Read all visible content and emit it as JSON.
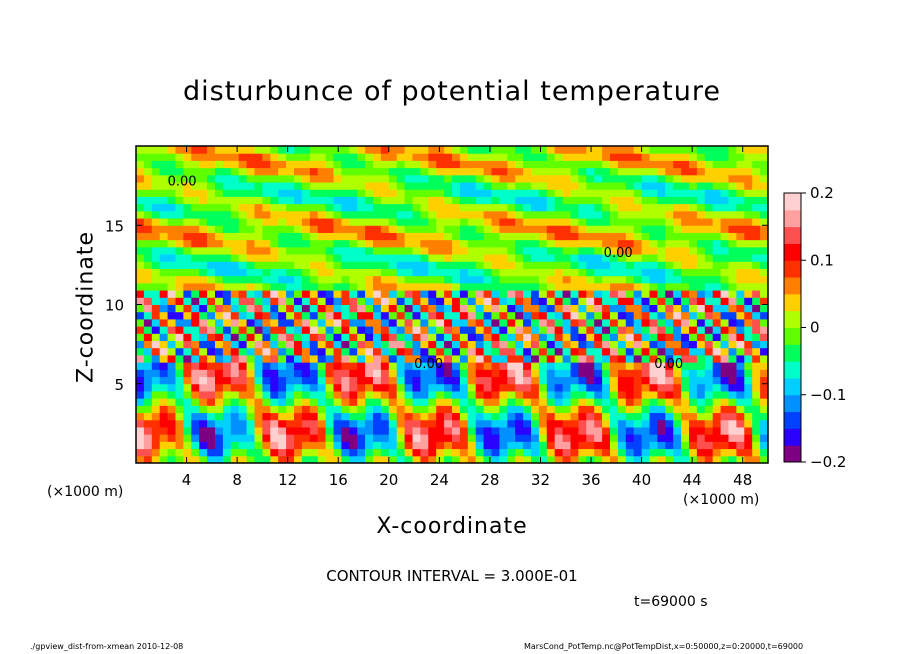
{
  "chart_data": {
    "type": "heatmap",
    "title": "disturbunce of potential temperature",
    "xlabel": "X-coordinate",
    "ylabel": "Z-coordinate",
    "x_unit_label": "(×1000 m)",
    "xlim": [
      0,
      50
    ],
    "ylim": [
      0,
      20
    ],
    "x_ticks": [
      4,
      8,
      12,
      16,
      20,
      24,
      28,
      32,
      36,
      40,
      44,
      48
    ],
    "y_ticks": [
      5,
      10,
      15
    ],
    "colorbar": {
      "range": [
        -0.2,
        0.2
      ],
      "tick_values": [
        0.2,
        0.1,
        0,
        -0.1,
        -0.2
      ],
      "tick_labels": [
        "0.2",
        "0.1",
        "0",
        "−0.1",
        "−0.2"
      ],
      "colors": [
        "#7f0080",
        "#2a00ff",
        "#0040ff",
        "#0090ff",
        "#00d0ff",
        "#00ffc8",
        "#00ff5a",
        "#60ff00",
        "#b0ff00",
        "#ffd000",
        "#ff8000",
        "#ff3000",
        "#ff0000",
        "#ff5050",
        "#ffa0a0",
        "#ffd0d0"
      ]
    },
    "contour_interval_text": "CONTOUR INTERVAL = 3.000E-01",
    "contour_label": "0.00",
    "time_label": "t=69000 s"
  },
  "footer": {
    "left": "./gpview_dist-from-xmean   2010-12-08",
    "right": "MarsCond_PotTemp.nc@PotTempDist,x=0:50000,z=0:20000,t=69000"
  }
}
